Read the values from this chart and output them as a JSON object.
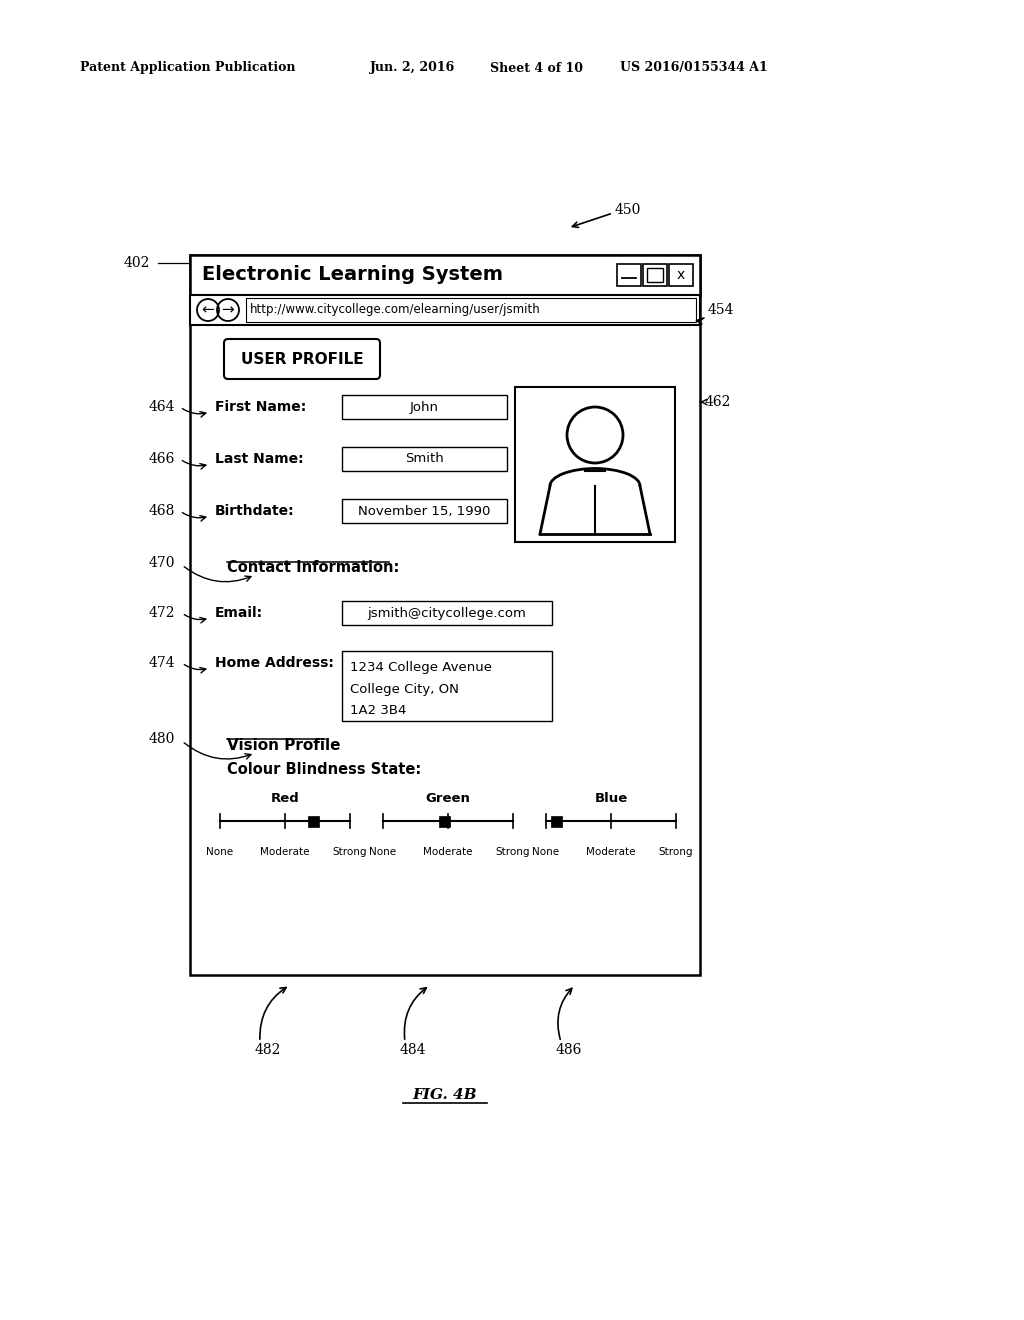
{
  "bg_color": "#ffffff",
  "header_line1": "Patent Application Publication",
  "header_line2": "Jun. 2, 2016",
  "header_line3": "Sheet 4 of 10",
  "header_line4": "US 2016/0155344 A1",
  "fig_label": "FIG. 4B",
  "window_title": "Electronic Learning System",
  "url": "http://www.citycollege.com/elearning/user/jsmith",
  "btn_user_profile": "USER PROFILE",
  "first_name_label": "First Name:",
  "first_name_value": "John",
  "last_name_label": "Last Name:",
  "last_name_value": "Smith",
  "birthdate_label": "Birthdate:",
  "birthdate_value": "November 15, 1990",
  "contact_info_label": "Contact Information:",
  "email_label": "Email:",
  "email_value": "jsmith@citycollege.com",
  "home_address_label": "Home Address:",
  "home_address_value": "1234 College Avenue\nCollege City, ON\n1A2 3B4",
  "vision_profile_label": "Vision Profile",
  "cbs_label": "Colour Blindness State:",
  "red_label": "Red",
  "green_label": "Green",
  "blue_label": "Blue",
  "slider_labels": [
    "None",
    "Moderate",
    "Strong"
  ],
  "labels_left": [
    "402",
    "464",
    "466",
    "468",
    "470",
    "472",
    "474",
    "480"
  ],
  "labels_right": [
    "462",
    "454"
  ],
  "labels_below": [
    "482",
    "484",
    "486"
  ],
  "label_450": "450"
}
